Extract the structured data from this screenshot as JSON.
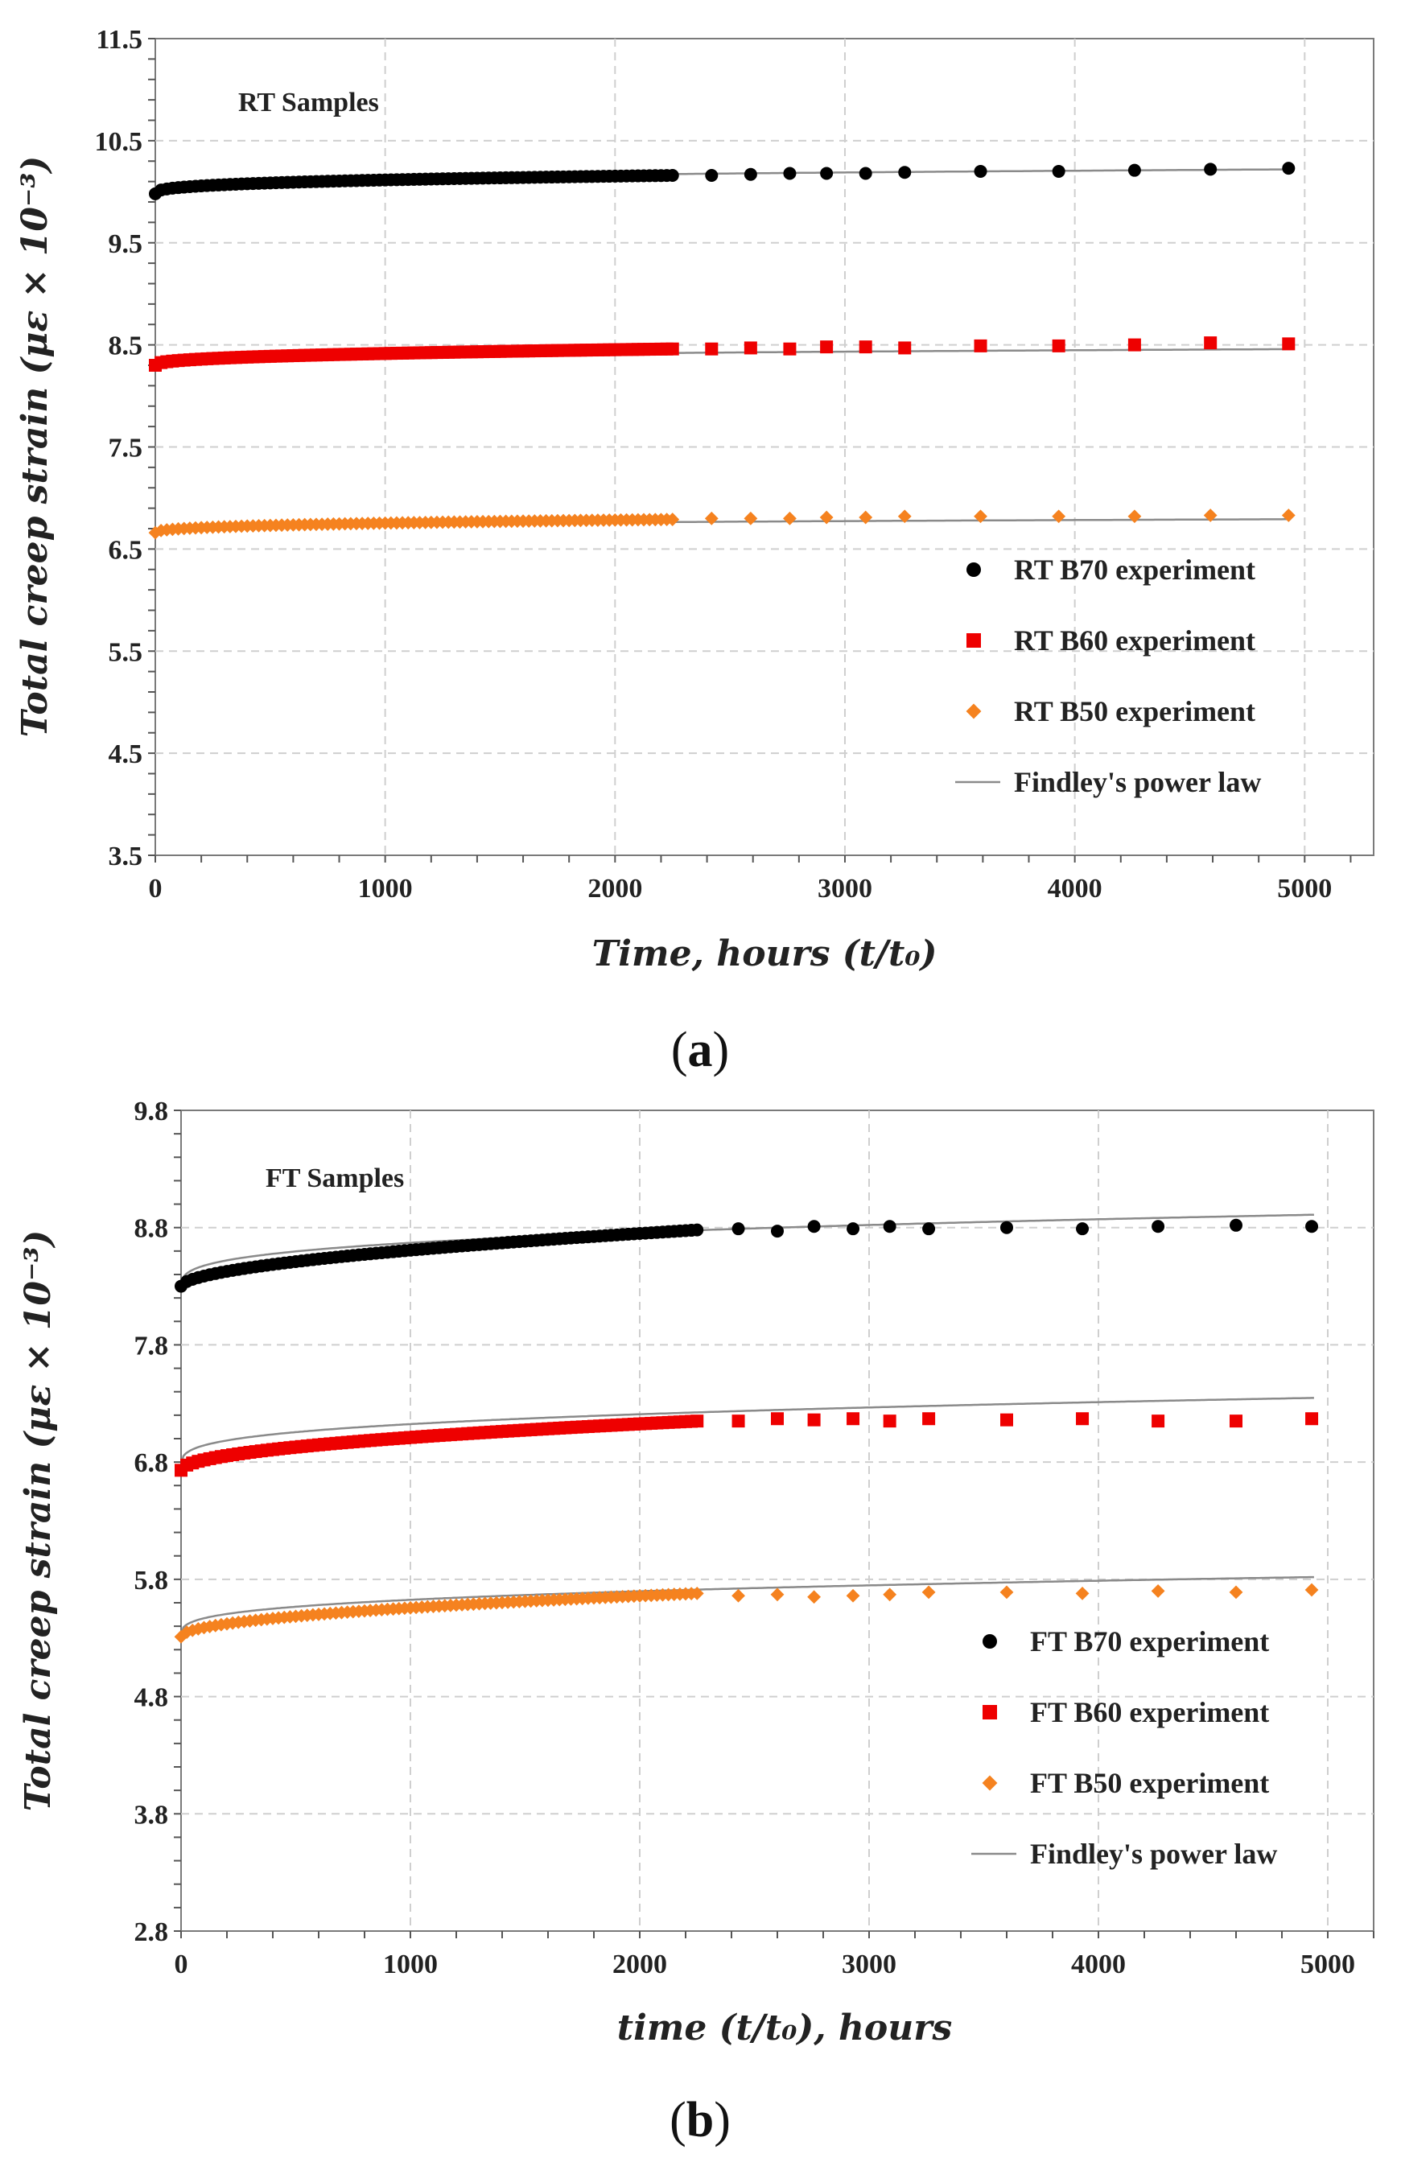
{
  "chart_data": [
    {
      "type": "scatter",
      "panel": "(a)",
      "panel_caption": {
        "open": "(",
        "letter": "a",
        "close": ")"
      },
      "annotation": "RT Samples",
      "xlabel": "Time, hours (t/t₀)",
      "ylabel": "Total creep strain (με × 10⁻³)",
      "xlim": [
        0,
        5300
      ],
      "ylim": [
        3.5,
        11.5
      ],
      "xticks": [
        0,
        1000,
        2000,
        3000,
        4000,
        5000
      ],
      "xtick_labels": [
        "0",
        "1000",
        "2000",
        "3000",
        "4000",
        "5000"
      ],
      "yticks": [
        3.5,
        4.5,
        5.5,
        6.5,
        7.5,
        8.5,
        9.5,
        10.5,
        11.5
      ],
      "ytick_labels": [
        "3.5",
        "4.5",
        "5.5",
        "6.5",
        "7.5",
        "8.5",
        "9.5",
        "10.5",
        "11.5"
      ],
      "grid": true,
      "legend_position": "bottom-right",
      "series": [
        {
          "name": "RT B70 experiment",
          "marker": "circle",
          "color": "#000000",
          "dense_x_end": 2250,
          "dense_step": 25,
          "dense_start": 9.98,
          "dense_end": 10.16,
          "dense_exponent": 0.35,
          "sparse_x": [
            2420,
            2590,
            2760,
            2920,
            3090,
            3260,
            3590,
            3930,
            4260,
            4590,
            4930
          ],
          "sparse_y": [
            10.16,
            10.17,
            10.18,
            10.18,
            10.18,
            10.19,
            10.2,
            10.2,
            10.21,
            10.22,
            10.23
          ]
        },
        {
          "name": "RT B60 experiment",
          "marker": "square",
          "color": "#ee0000",
          "dense_x_end": 2250,
          "dense_step": 25,
          "dense_start": 8.3,
          "dense_end": 8.46,
          "dense_exponent": 0.4,
          "sparse_x": [
            2420,
            2590,
            2760,
            2920,
            3090,
            3260,
            3590,
            3930,
            4260,
            4590,
            4930
          ],
          "sparse_y": [
            8.46,
            8.47,
            8.46,
            8.48,
            8.48,
            8.47,
            8.49,
            8.49,
            8.5,
            8.52,
            8.51
          ]
        },
        {
          "name": "RT B50 experiment",
          "marker": "diamond",
          "color": "#f5821f",
          "dense_x_end": 2250,
          "dense_step": 25,
          "dense_start": 6.66,
          "dense_end": 6.79,
          "dense_exponent": 0.4,
          "sparse_x": [
            2420,
            2590,
            2760,
            2920,
            3090,
            3260,
            3590,
            3930,
            4260,
            4590,
            4930
          ],
          "sparse_y": [
            6.8,
            6.8,
            6.8,
            6.81,
            6.81,
            6.82,
            6.82,
            6.82,
            6.82,
            6.83,
            6.83
          ]
        }
      ],
      "fits": [
        {
          "name": "Findley's power law",
          "color": "#8a8a8a",
          "e0": 10.0,
          "m": 0.0171,
          "n": 0.3,
          "x_end": 4940
        },
        {
          "name": "Findley's power law",
          "color": "#8a8a8a",
          "e0": 8.28,
          "m": 0.0139,
          "n": 0.3,
          "x_end": 4940
        },
        {
          "name": "Findley's power law",
          "color": "#8a8a8a",
          "e0": 6.66,
          "m": 0.0103,
          "n": 0.3,
          "x_end": 4940
        }
      ],
      "legend": [
        {
          "label": "RT B70 experiment",
          "marker": "circle",
          "color": "#000000"
        },
        {
          "label": "RT B60 experiment",
          "marker": "square",
          "color": "#ee0000"
        },
        {
          "label": "RT B50 experiment",
          "marker": "diamond",
          "color": "#f5821f"
        },
        {
          "label": "Findley's power law",
          "marker": "line",
          "color": "#8a8a8a"
        }
      ]
    },
    {
      "type": "scatter",
      "panel": "(b)",
      "panel_caption": {
        "open": "(",
        "letter": "b",
        "close": ")"
      },
      "annotation": "FT Samples",
      "xlabel": "time (t/t₀), hours",
      "ylabel": "Total creep strain (με × 10⁻³)",
      "xlim": [
        0,
        5200
      ],
      "ylim": [
        2.8,
        9.8
      ],
      "xticks": [
        0,
        1000,
        2000,
        3000,
        4000,
        5000
      ],
      "xtick_labels": [
        "0",
        "1000",
        "2000",
        "3000",
        "4000",
        "5000"
      ],
      "yticks": [
        2.8,
        3.8,
        4.8,
        5.8,
        6.8,
        7.8,
        8.8,
        9.8
      ],
      "ytick_labels": [
        "2.8",
        "3.8",
        "4.8",
        "5.8",
        "6.8",
        "7.8",
        "8.8",
        "9.8"
      ],
      "grid": true,
      "legend_position": "bottom-right",
      "series": [
        {
          "name": "FT B70 experiment",
          "marker": "circle",
          "color": "#000000",
          "dense_x_end": 2250,
          "dense_step": 25,
          "dense_start": 8.3,
          "dense_end": 8.78,
          "dense_exponent": 0.55,
          "sparse_x": [
            2430,
            2600,
            2760,
            2930,
            3090,
            3260,
            3600,
            3930,
            4260,
            4600,
            4930
          ],
          "sparse_y": [
            8.79,
            8.77,
            8.81,
            8.79,
            8.81,
            8.79,
            8.8,
            8.79,
            8.81,
            8.82,
            8.81
          ]
        },
        {
          "name": "FT B60 experiment",
          "marker": "square",
          "color": "#ee0000",
          "dense_x_end": 2250,
          "dense_step": 25,
          "dense_start": 6.73,
          "dense_end": 7.15,
          "dense_exponent": 0.5,
          "sparse_x": [
            2430,
            2600,
            2760,
            2930,
            3090,
            3260,
            3600,
            3930,
            4260,
            4600,
            4930
          ],
          "sparse_y": [
            7.15,
            7.17,
            7.16,
            7.17,
            7.15,
            7.17,
            7.16,
            7.17,
            7.15,
            7.15,
            7.17
          ]
        },
        {
          "name": "FT B50 experiment",
          "marker": "diamond",
          "color": "#f5821f",
          "dense_x_end": 2250,
          "dense_step": 25,
          "dense_start": 5.31,
          "dense_end": 5.68,
          "dense_exponent": 0.5,
          "sparse_x": [
            2430,
            2600,
            2760,
            2930,
            3090,
            3260,
            3600,
            3930,
            4260,
            4600,
            4930
          ],
          "sparse_y": [
            5.66,
            5.67,
            5.65,
            5.66,
            5.67,
            5.69,
            5.69,
            5.68,
            5.7,
            5.69,
            5.71
          ]
        }
      ],
      "fits": [
        {
          "name": "Findley's power law",
          "color": "#8a8a8a",
          "e0": 8.28,
          "m": 0.0491,
          "n": 0.3,
          "x_end": 4940
        },
        {
          "name": "Findley's power law",
          "color": "#8a8a8a",
          "e0": 6.76,
          "m": 0.0458,
          "n": 0.3,
          "x_end": 4940
        },
        {
          "name": "Findley's power law",
          "color": "#8a8a8a",
          "e0": 5.31,
          "m": 0.0397,
          "n": 0.3,
          "x_end": 4940
        }
      ],
      "legend": [
        {
          "label": "FT B70 experiment",
          "marker": "circle",
          "color": "#000000"
        },
        {
          "label": "FT B60 experiment",
          "marker": "square",
          "color": "#ee0000"
        },
        {
          "label": "FT B50 experiment",
          "marker": "diamond",
          "color": "#f5821f"
        },
        {
          "label": "Findley's power law",
          "marker": "line",
          "color": "#8a8a8a"
        }
      ]
    }
  ]
}
